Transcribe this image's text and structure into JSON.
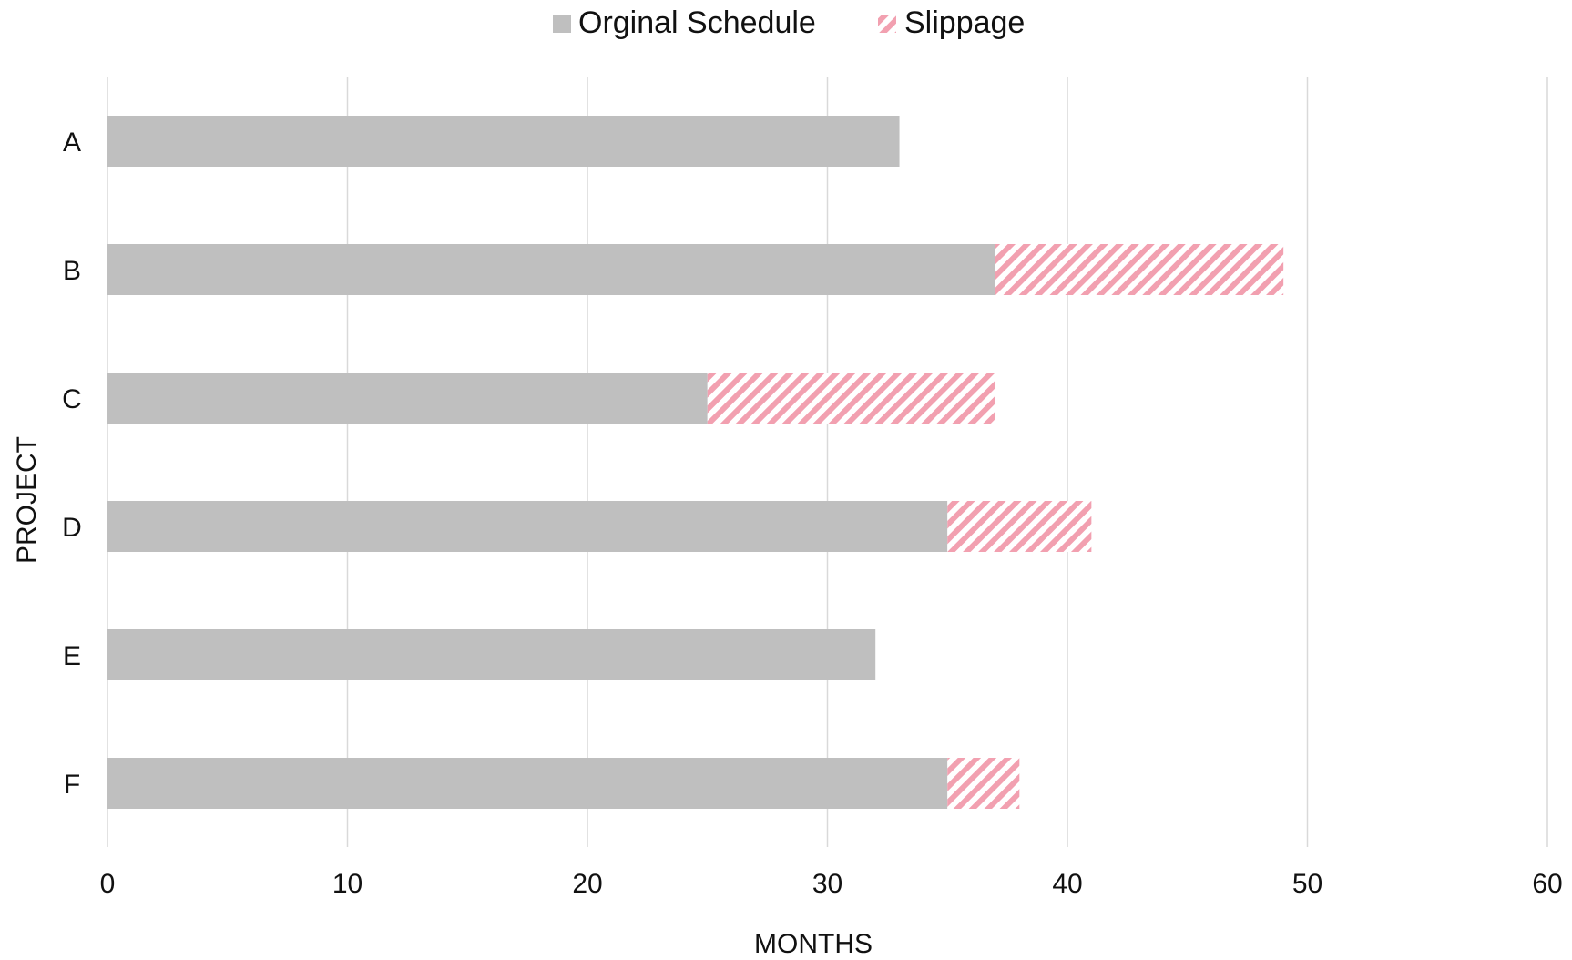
{
  "chart_data": {
    "type": "bar",
    "orientation": "horizontal",
    "stacked": true,
    "categories": [
      "A",
      "B",
      "C",
      "D",
      "E",
      "F"
    ],
    "series": [
      {
        "name": "Orginal Schedule",
        "values": [
          33,
          37,
          25,
          35,
          32,
          35
        ],
        "color": "#bfbfbf",
        "pattern": "solid"
      },
      {
        "name": "Slippage",
        "values": [
          0,
          12,
          12,
          6,
          0,
          3
        ],
        "color": "#f2a0b0",
        "pattern": "diagonal-hatch"
      }
    ],
    "xlabel": "MONTHS",
    "ylabel": "PROJECT",
    "xlim": [
      0,
      60
    ],
    "xticks": [
      0,
      10,
      20,
      30,
      40,
      50,
      60
    ],
    "grid": "vertical",
    "legend": "top-center"
  }
}
